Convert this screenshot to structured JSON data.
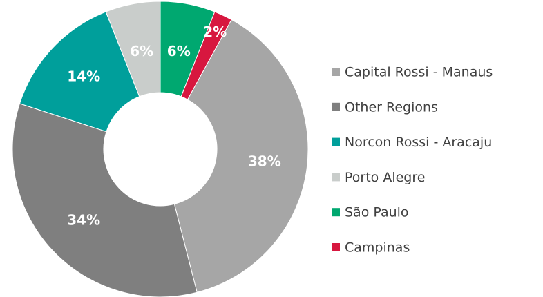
{
  "chart_data": {
    "type": "donut",
    "categories": [
      "Capital Rossi - Manaus",
      "Other Regions",
      "Norcon Rossi - Aracaju",
      "Porto Alegre",
      "São Paulo",
      "Campinas"
    ],
    "values": [
      38,
      34,
      14,
      6,
      6,
      2
    ],
    "value_labels": [
      "38%",
      "34%",
      "14%",
      "6%",
      "6%",
      "2%"
    ],
    "colors": [
      "#a6a6a6",
      "#7f7f7f",
      "#009f9b",
      "#c9cdcb",
      "#00a870",
      "#d7173f"
    ],
    "legend": "right"
  }
}
